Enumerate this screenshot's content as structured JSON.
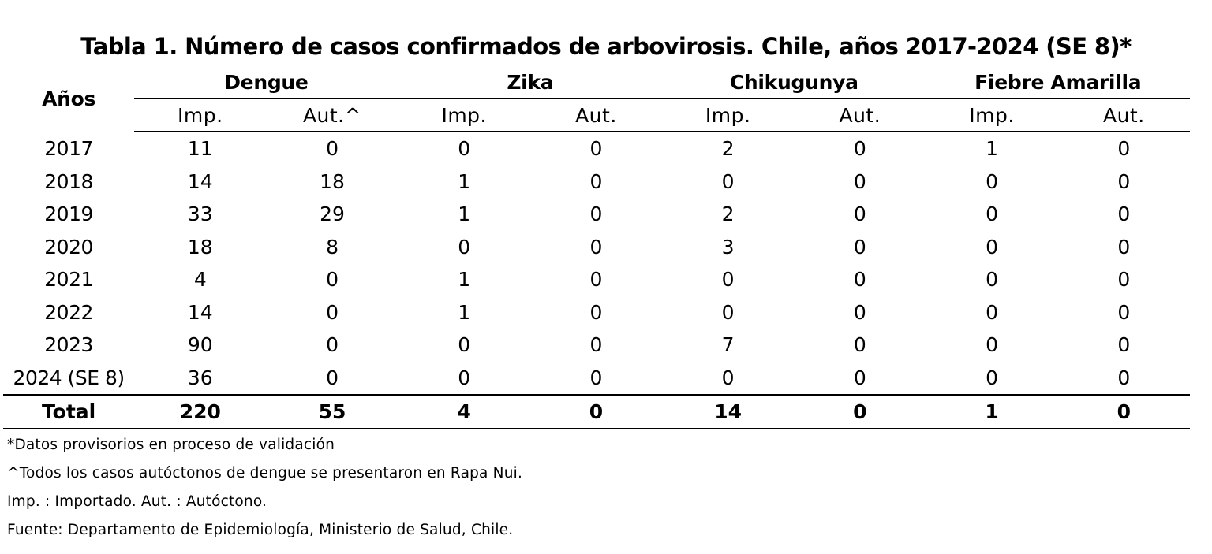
{
  "title": "Tabla 1. Número de casos confirmados de arbovirosis. Chile, años 2017-2024 (SE 8)*",
  "table": {
    "year_header": "Años",
    "groups": [
      "Dengue",
      "Zika",
      "Chikugunya",
      "Fiebre Amarilla"
    ],
    "subheaders": [
      "Imp.",
      "Aut.^",
      "Imp.",
      "Aut.",
      "Imp.",
      "Aut.",
      "Imp.",
      "Aut."
    ],
    "rows": [
      {
        "year": "2017",
        "values": [
          "11",
          "0",
          "0",
          "0",
          "2",
          "0",
          "1",
          "0"
        ]
      },
      {
        "year": "2018",
        "values": [
          "14",
          "18",
          "1",
          "0",
          "0",
          "0",
          "0",
          "0"
        ]
      },
      {
        "year": "2019",
        "values": [
          "33",
          "29",
          "1",
          "0",
          "2",
          "0",
          "0",
          "0"
        ]
      },
      {
        "year": "2020",
        "values": [
          "18",
          "8",
          "0",
          "0",
          "3",
          "0",
          "0",
          "0"
        ]
      },
      {
        "year": "2021",
        "values": [
          "4",
          "0",
          "1",
          "0",
          "0",
          "0",
          "0",
          "0"
        ]
      },
      {
        "year": "2022",
        "values": [
          "14",
          "0",
          "1",
          "0",
          "0",
          "0",
          "0",
          "0"
        ]
      },
      {
        "year": "2023",
        "values": [
          "90",
          "0",
          "0",
          "0",
          "7",
          "0",
          "0",
          "0"
        ]
      },
      {
        "year": "2024 (SE 8)",
        "values": [
          "36",
          "0",
          "0",
          "0",
          "0",
          "0",
          "0",
          "0"
        ]
      }
    ],
    "total": {
      "label": "Total",
      "values": [
        "220",
        "55",
        "4",
        "0",
        "14",
        "0",
        "1",
        "0"
      ]
    }
  },
  "notes": [
    "*Datos provisorios en proceso de validación",
    "^Todos los casos autóctonos de dengue se presentaron en Rapa Nui.",
    "Imp. : Importado.  Aut. : Autóctono.",
    "Fuente: Departamento de Epidemiología, Ministerio de Salud, Chile."
  ]
}
